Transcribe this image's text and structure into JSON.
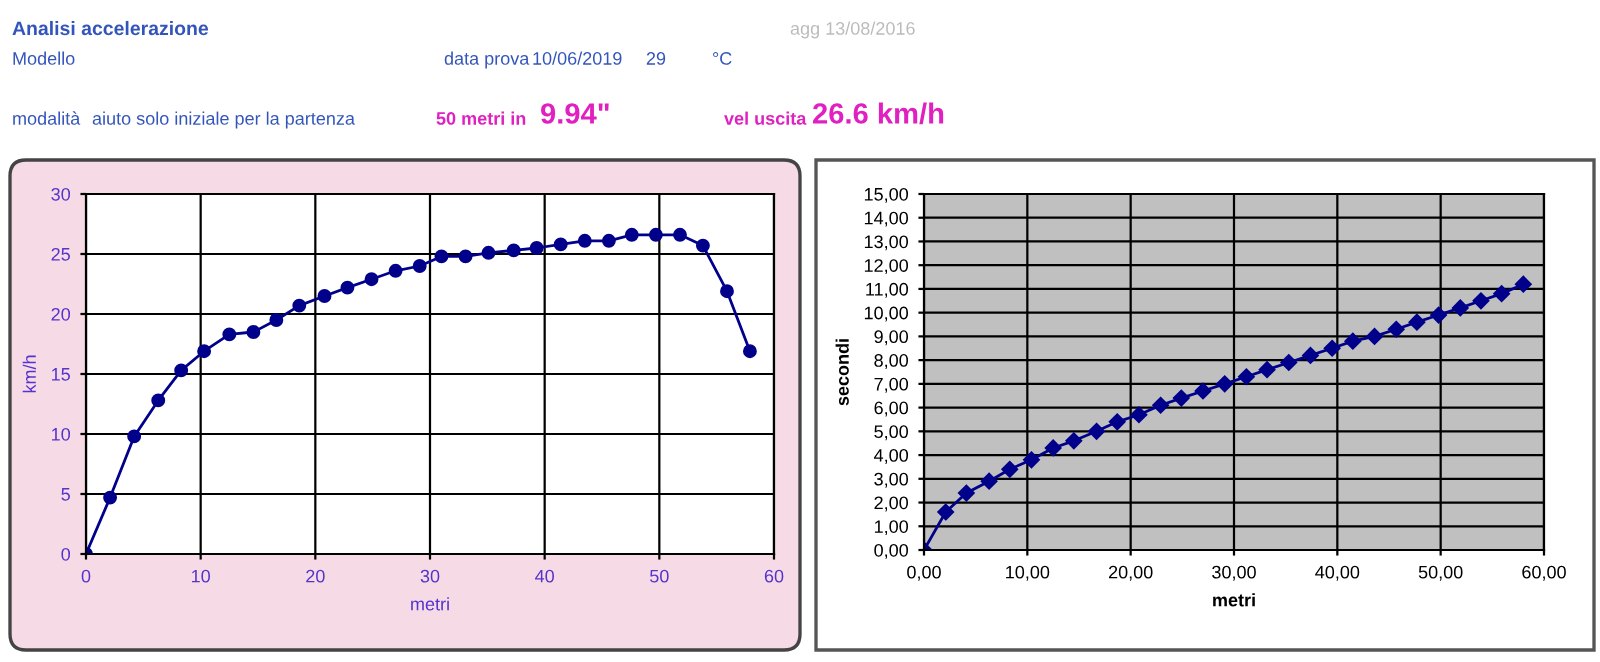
{
  "chart_data": [
    {
      "type": "other",
      "title": "Analisi accelerazione",
      "annotations": [
        "agg 13/08/2016",
        "Modello",
        "data prova",
        "10/06/2019",
        "29",
        "°C",
        "modalità",
        "aiuto solo iniziale per la partenza",
        "50 metri in",
        "9.94\"",
        "vel uscita",
        "26.6 km/h"
      ]
    },
    {
      "type": "line",
      "xlabel": "metri",
      "ylabel": "km/h",
      "marker": "circle",
      "grid": true,
      "xlim": [
        0,
        60
      ],
      "ylim": [
        0,
        30
      ],
      "xticks": [
        0,
        10,
        20,
        30,
        40,
        50,
        60
      ],
      "yticks": [
        0,
        5,
        10,
        15,
        20,
        25,
        30
      ],
      "x": [
        0,
        2.1,
        4.2,
        6.3,
        8.3,
        10.3,
        12.5,
        14.6,
        16.6,
        18.6,
        20.8,
        22.8,
        24.9,
        27.0,
        29.1,
        31.0,
        33.1,
        35.1,
        37.3,
        39.3,
        41.4,
        43.5,
        45.6,
        47.6,
        49.7,
        51.8,
        53.8,
        55.9,
        57.9
      ],
      "series": [
        {
          "color": "#00008b",
          "values": [
            0,
            4.7,
            9.8,
            12.8,
            15.3,
            16.9,
            18.3,
            18.5,
            19.5,
            20.7,
            21.5,
            22.2,
            22.9,
            23.6,
            24.0,
            24.8,
            24.8,
            25.1,
            25.3,
            25.5,
            25.8,
            26.1,
            26.1,
            26.6,
            26.6,
            26.6,
            25.7,
            21.9,
            16.9
          ]
        }
      ]
    },
    {
      "type": "line",
      "xlabel": "metri",
      "ylabel": "secondi",
      "marker": "diamond",
      "grid": true,
      "xlim": [
        0,
        60
      ],
      "ylim": [
        0,
        15
      ],
      "xticks": [
        {
          "value": 0,
          "label": "0,00"
        },
        {
          "value": 10,
          "label": "10,00"
        },
        {
          "value": 20,
          "label": "20,00"
        },
        {
          "value": 30,
          "label": "30,00"
        },
        {
          "value": 40,
          "label": "40,00"
        },
        {
          "value": 50,
          "label": "50,00"
        },
        {
          "value": 60,
          "label": "60,00"
        }
      ],
      "yticks": [
        {
          "value": 0,
          "label": "0,00"
        },
        {
          "value": 1,
          "label": "1,00"
        },
        {
          "value": 2,
          "label": "2,00"
        },
        {
          "value": 3,
          "label": "3,00"
        },
        {
          "value": 4,
          "label": "4,00"
        },
        {
          "value": 5,
          "label": "5,00"
        },
        {
          "value": 6,
          "label": "6,00"
        },
        {
          "value": 7,
          "label": "7,00"
        },
        {
          "value": 8,
          "label": "8,00"
        },
        {
          "value": 9,
          "label": "9,00"
        },
        {
          "value": 10,
          "label": "10,00"
        },
        {
          "value": 11,
          "label": "11,00"
        },
        {
          "value": 12,
          "label": "12,00"
        },
        {
          "value": 13,
          "label": "13,00"
        },
        {
          "value": 14,
          "label": "14,00"
        },
        {
          "value": 15,
          "label": "15,00"
        }
      ],
      "x": [
        0,
        2.1,
        4.1,
        6.3,
        8.3,
        10.4,
        12.5,
        14.5,
        16.7,
        18.7,
        20.8,
        22.9,
        24.9,
        27.0,
        29.1,
        31.2,
        33.2,
        35.3,
        37.4,
        39.5,
        41.5,
        43.6,
        45.7,
        47.7,
        49.8,
        51.9,
        53.9,
        55.9,
        58.0
      ],
      "series": [
        {
          "color": "#00008b",
          "values": [
            0,
            1.6,
            2.4,
            2.9,
            3.4,
            3.8,
            4.3,
            4.6,
            5.0,
            5.4,
            5.7,
            6.1,
            6.4,
            6.7,
            7.0,
            7.3,
            7.6,
            7.9,
            8.2,
            8.5,
            8.8,
            9.0,
            9.3,
            9.6,
            9.9,
            10.2,
            10.5,
            10.8,
            11.2
          ]
        }
      ]
    }
  ]
}
